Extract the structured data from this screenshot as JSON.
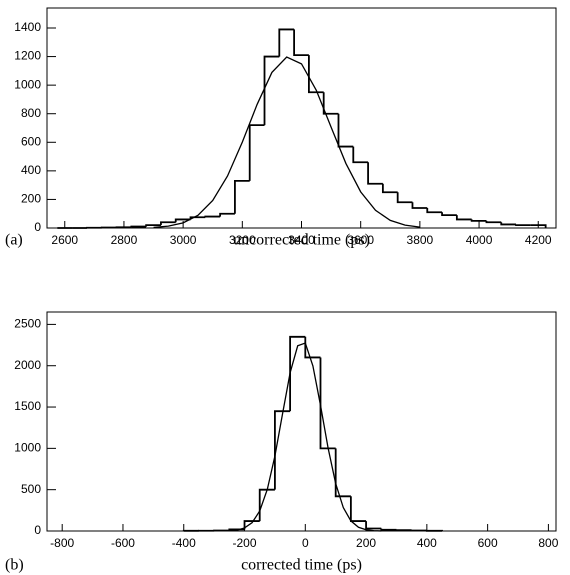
{
  "chart_data": [
    {
      "type": "histogram",
      "panel_label": "(a)",
      "x_label": "uncorrected time (ps)",
      "color": "#000000",
      "bins": [
        2575,
        2625,
        2675,
        2725,
        2775,
        2825,
        2875,
        2925,
        2975,
        3025,
        3075,
        3125,
        3175,
        3225,
        3275,
        3325,
        3375,
        3425,
        3475,
        3525,
        3575,
        3625,
        3675,
        3725,
        3775,
        3825,
        3875,
        3925,
        3975,
        4025,
        4075,
        4125,
        4175,
        4225
      ],
      "values": [
        0,
        0,
        2,
        3,
        5,
        10,
        20,
        40,
        60,
        75,
        80,
        100,
        330,
        720,
        1200,
        1390,
        1210,
        950,
        800,
        570,
        460,
        310,
        250,
        180,
        140,
        110,
        90,
        60,
        50,
        40,
        25,
        20,
        20
      ],
      "fit": {
        "x": [
          2900,
          2950,
          3000,
          3050,
          3100,
          3150,
          3200,
          3250,
          3300,
          3350,
          3400,
          3450,
          3500,
          3550,
          3600,
          3650,
          3700,
          3750,
          3800
        ],
        "values": [
          4,
          13,
          36,
          89,
          193,
          364,
          601,
          865,
          1089,
          1197,
          1149,
          964,
          706,
          452,
          253,
          124,
          53,
          20,
          6
        ]
      },
      "xlim": [
        2540,
        4260
      ],
      "ylim": [
        0,
        1540
      ],
      "xticks": [
        2600,
        2800,
        3000,
        3200,
        3400,
        3600,
        3800,
        4000,
        4200
      ],
      "yticks": [
        0,
        200,
        400,
        600,
        800,
        1000,
        1200,
        1400
      ]
    },
    {
      "type": "histogram",
      "panel_label": "(b)",
      "x_label": "corrected time (ps)",
      "color": "#000000",
      "bins": [
        -400,
        -350,
        -300,
        -250,
        -200,
        -150,
        -100,
        -50,
        0,
        50,
        100,
        150,
        200,
        250,
        300,
        350,
        400,
        450
      ],
      "values": [
        2,
        3,
        5,
        20,
        120,
        500,
        1450,
        2350,
        2100,
        1000,
        420,
        120,
        30,
        15,
        10,
        5,
        2
      ],
      "fit": {
        "x": [
          -250,
          -225,
          -200,
          -175,
          -150,
          -125,
          -100,
          -75,
          -50,
          -25,
          0,
          25,
          50,
          75,
          100,
          125,
          150,
          175,
          200,
          225,
          250
        ],
        "values": [
          3,
          11,
          37,
          101,
          242,
          504,
          908,
          1416,
          1914,
          2241,
          2274,
          1998,
          1522,
          1004,
          574,
          284,
          122,
          45,
          15,
          4,
          1
        ]
      },
      "xlim": [
        -850,
        825
      ],
      "ylim": [
        0,
        2650
      ],
      "xticks": [
        -800,
        -600,
        -400,
        -200,
        0,
        200,
        400,
        600,
        800
      ],
      "yticks": [
        0,
        500,
        1000,
        1500,
        2000,
        2500
      ]
    }
  ]
}
